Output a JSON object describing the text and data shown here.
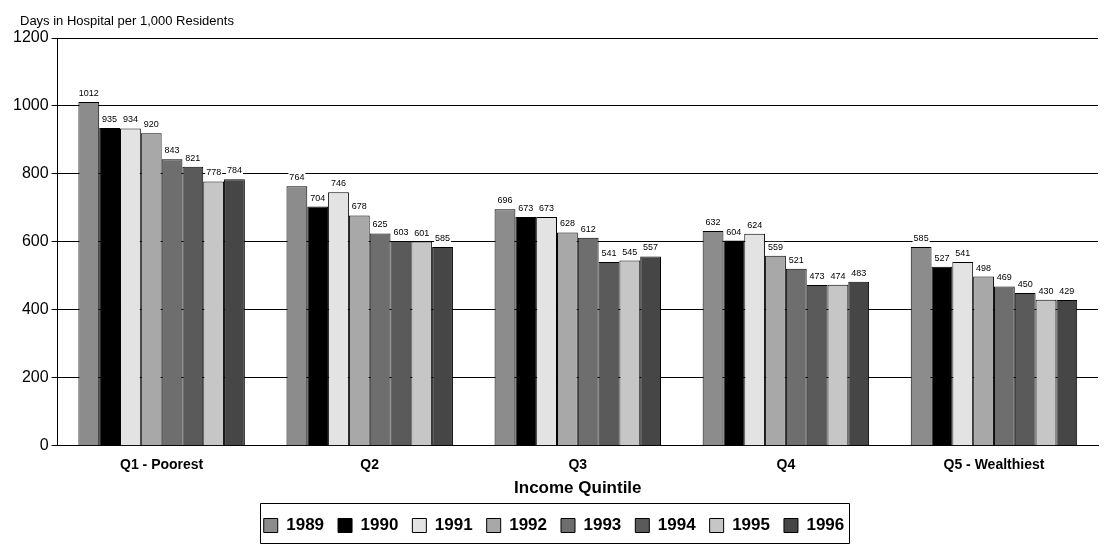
{
  "chart_data": {
    "type": "bar",
    "xlabel": "Income Quintile",
    "ylabel": "Days in Hospital per 1,000 Residents",
    "categories": [
      "Q1 - Poorest",
      "Q2",
      "Q3",
      "Q4",
      "Q5 - Wealthiest"
    ],
    "series": [
      {
        "name": "1989",
        "color": "#8c8c8c",
        "values": [
          1012,
          764,
          696,
          632,
          585
        ]
      },
      {
        "name": "1990",
        "color": "#000000",
        "values": [
          935,
          704,
          673,
          604,
          527
        ]
      },
      {
        "name": "1991",
        "color": "#e3e3e3",
        "values": [
          934,
          746,
          673,
          624,
          541
        ]
      },
      {
        "name": "1992",
        "color": "#a8a8a8",
        "values": [
          920,
          678,
          628,
          559,
          498
        ]
      },
      {
        "name": "1993",
        "color": "#6e6e6e",
        "values": [
          843,
          625,
          612,
          521,
          469
        ]
      },
      {
        "name": "1994",
        "color": "#5a5a5a",
        "values": [
          821,
          603,
          541,
          473,
          450
        ]
      },
      {
        "name": "1995",
        "color": "#c6c6c6",
        "values": [
          778,
          601,
          545,
          474,
          430
        ]
      },
      {
        "name": "1996",
        "color": "#464646",
        "values": [
          784,
          585,
          557,
          483,
          429
        ]
      }
    ],
    "ylim": [
      0,
      1200
    ],
    "yticks": [
      0,
      200,
      400,
      600,
      800,
      1000,
      1200
    ],
    "grid": "y",
    "legend": "bottom",
    "data_labels": true
  }
}
